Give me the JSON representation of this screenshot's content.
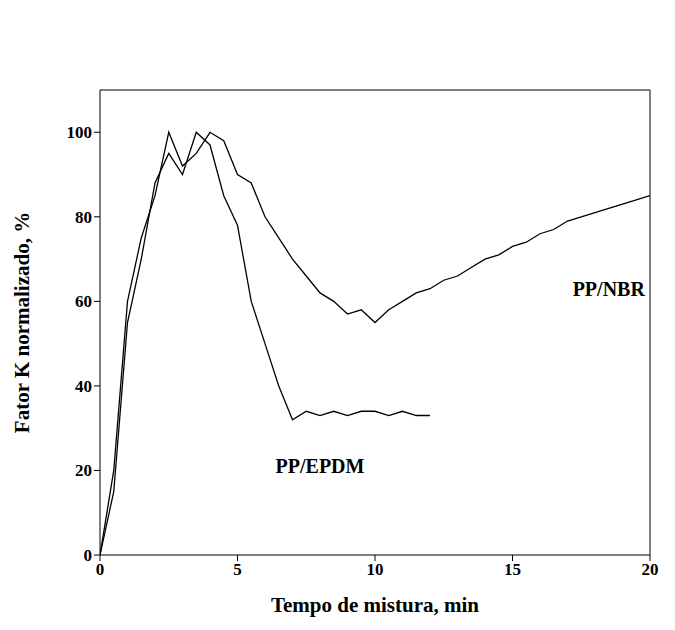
{
  "chart_data": {
    "type": "line",
    "x_label": "Tempo de mistura, min",
    "y_label": "Fator K normalizado, %",
    "x": [
      0,
      0.5,
      1,
      1.5,
      2,
      2.5,
      3,
      3.5,
      4,
      4.5,
      5,
      5.5,
      6,
      6.5,
      7,
      7.5,
      8,
      8.5,
      9,
      9.5,
      10,
      10.5,
      11,
      11.5,
      12,
      12.5,
      13,
      13.5,
      14,
      14.5,
      15,
      15.5,
      16,
      16.5,
      17,
      17.5,
      18,
      18.5,
      19,
      19.5,
      20
    ],
    "series": [
      {
        "name": "PP/NBR",
        "color": "#000000",
        "values": [
          0,
          20,
          60,
          75,
          85,
          100,
          92,
          95,
          100,
          98,
          90,
          88,
          80,
          75,
          70,
          66,
          62,
          60,
          57,
          58,
          55,
          58,
          60,
          62,
          63,
          65,
          66,
          68,
          70,
          71,
          73,
          74,
          76,
          77,
          79,
          80,
          81,
          82,
          83,
          84,
          85
        ]
      },
      {
        "name": "PP/EPDM",
        "color": "#000000",
        "values": [
          0,
          15,
          55,
          70,
          88,
          95,
          90,
          100,
          97,
          85,
          78,
          60,
          50,
          40,
          32,
          34,
          33,
          34,
          33,
          34,
          34,
          33,
          34,
          33,
          33,
          null,
          null,
          null,
          null,
          null,
          null,
          null,
          null,
          null,
          null,
          null,
          null,
          null,
          null,
          null,
          null
        ]
      }
    ],
    "annotations": [
      {
        "text": "PP/NBR",
        "x": 18.5,
        "y": 63
      },
      {
        "text": "PP/EPDM",
        "x": 8,
        "y": 21
      }
    ],
    "xlim": [
      0,
      20
    ],
    "xticks": [
      0,
      5,
      10,
      15,
      20
    ],
    "ylim": [
      0,
      110
    ],
    "yticks": [
      0,
      20,
      40,
      60,
      80,
      100
    ],
    "grid": false,
    "legend": false
  }
}
